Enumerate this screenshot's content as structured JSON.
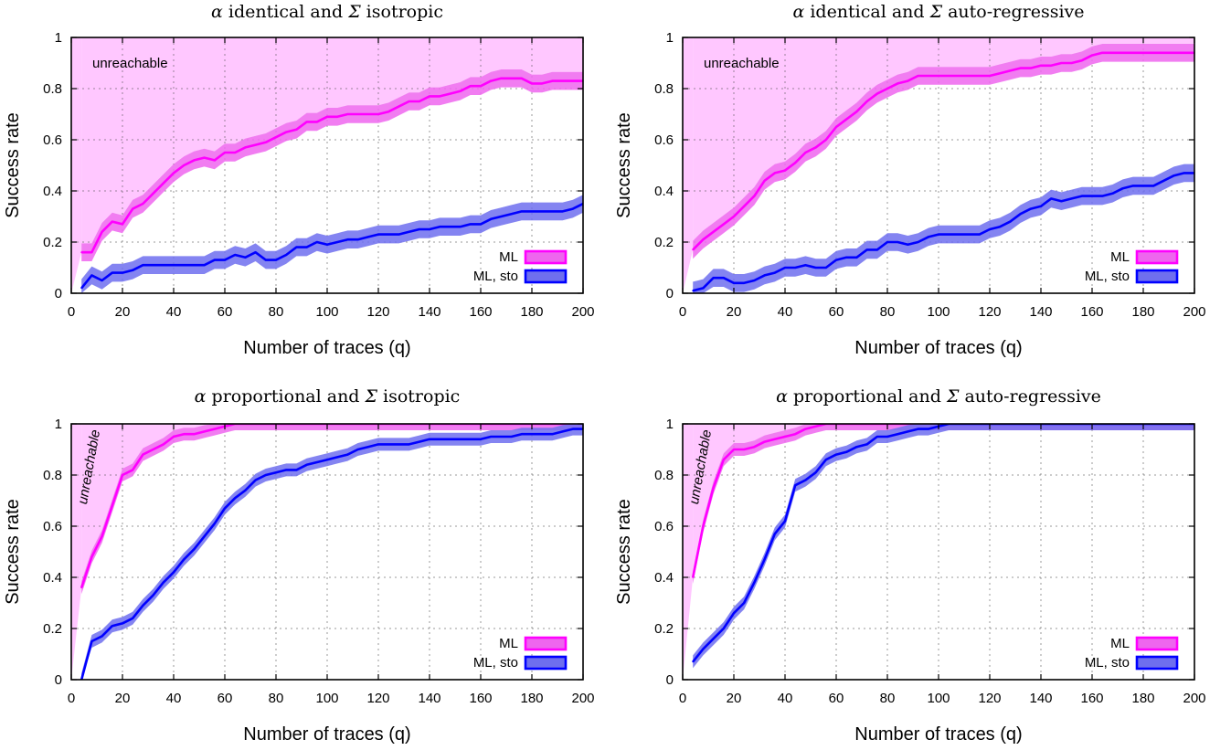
{
  "chart_data": [
    {
      "type": "line",
      "title_symbol_1": "α",
      "title_mid": "identical and",
      "title_symbol_2": "Σ",
      "title_end": "isotropic",
      "xlabel": "Number of traces (q)",
      "ylabel": "Success rate",
      "xlim": [
        0,
        200
      ],
      "ylim": [
        0,
        1
      ],
      "xticks": [
        "0",
        "20",
        "40",
        "60",
        "80",
        "100",
        "120",
        "140",
        "160",
        "180",
        "200"
      ],
      "yticks": [
        "0",
        "0.2",
        "0.4",
        "0.6",
        "0.8",
        "1"
      ],
      "grid": true,
      "legend_position": "bottom-right",
      "region_label": "unreachable",
      "region_label_rotated": false,
      "band_width": 0.035,
      "series": [
        {
          "name": "ML",
          "color": "#ff00ff",
          "band_color": "#ee66ee",
          "x": [
            4,
            8,
            12,
            16,
            20,
            24,
            28,
            32,
            36,
            40,
            44,
            48,
            52,
            56,
            60,
            64,
            68,
            72,
            76,
            80,
            84,
            88,
            92,
            96,
            100,
            104,
            108,
            112,
            116,
            120,
            124,
            128,
            132,
            136,
            140,
            144,
            148,
            152,
            156,
            160,
            164,
            168,
            172,
            176,
            180,
            184,
            188,
            192,
            196,
            200
          ],
          "y": [
            0.16,
            0.16,
            0.24,
            0.28,
            0.27,
            0.33,
            0.35,
            0.39,
            0.43,
            0.47,
            0.5,
            0.52,
            0.53,
            0.52,
            0.55,
            0.55,
            0.57,
            0.58,
            0.59,
            0.61,
            0.63,
            0.64,
            0.67,
            0.67,
            0.69,
            0.69,
            0.7,
            0.7,
            0.7,
            0.7,
            0.71,
            0.73,
            0.75,
            0.75,
            0.77,
            0.77,
            0.78,
            0.79,
            0.81,
            0.81,
            0.83,
            0.84,
            0.84,
            0.84,
            0.82,
            0.82,
            0.83,
            0.83,
            0.83,
            0.83
          ]
        },
        {
          "name": "ML, sto",
          "color": "#0000ff",
          "band_color": "#6f6fee",
          "x": [
            4,
            8,
            12,
            16,
            20,
            24,
            28,
            32,
            36,
            40,
            44,
            48,
            52,
            56,
            60,
            64,
            68,
            72,
            76,
            80,
            84,
            88,
            92,
            96,
            100,
            104,
            108,
            112,
            116,
            120,
            124,
            128,
            132,
            136,
            140,
            144,
            148,
            152,
            156,
            160,
            164,
            168,
            172,
            176,
            180,
            184,
            188,
            192,
            196,
            200
          ],
          "y": [
            0.02,
            0.07,
            0.05,
            0.08,
            0.08,
            0.09,
            0.11,
            0.11,
            0.11,
            0.11,
            0.11,
            0.11,
            0.11,
            0.13,
            0.13,
            0.15,
            0.14,
            0.16,
            0.13,
            0.13,
            0.15,
            0.18,
            0.18,
            0.2,
            0.19,
            0.2,
            0.21,
            0.21,
            0.22,
            0.23,
            0.23,
            0.23,
            0.24,
            0.25,
            0.25,
            0.26,
            0.26,
            0.26,
            0.27,
            0.27,
            0.29,
            0.3,
            0.31,
            0.32,
            0.32,
            0.32,
            0.32,
            0.32,
            0.33,
            0.35
          ]
        }
      ]
    },
    {
      "type": "line",
      "title_symbol_1": "α",
      "title_mid": "identical and",
      "title_symbol_2": "Σ",
      "title_end": "auto-regressive",
      "xlabel": "Number of traces (q)",
      "ylabel": "Success rate",
      "xlim": [
        0,
        200
      ],
      "ylim": [
        0,
        1
      ],
      "xticks": [
        "0",
        "20",
        "40",
        "60",
        "80",
        "100",
        "120",
        "140",
        "160",
        "180",
        "200"
      ],
      "yticks": [
        "0",
        "0.2",
        "0.4",
        "0.6",
        "0.8",
        "1"
      ],
      "grid": true,
      "legend_position": "bottom-right",
      "region_label": "unreachable",
      "region_label_rotated": false,
      "band_width": 0.035,
      "series": [
        {
          "name": "ML",
          "color": "#ff00ff",
          "band_color": "#ee66ee",
          "x": [
            4,
            8,
            12,
            16,
            20,
            24,
            28,
            32,
            36,
            40,
            44,
            48,
            52,
            56,
            60,
            64,
            68,
            72,
            76,
            80,
            84,
            88,
            92,
            96,
            100,
            104,
            108,
            112,
            116,
            120,
            124,
            128,
            132,
            136,
            140,
            144,
            148,
            152,
            156,
            160,
            164,
            168,
            172,
            176,
            180,
            184,
            188,
            192,
            196,
            200
          ],
          "y": [
            0.17,
            0.21,
            0.24,
            0.27,
            0.3,
            0.34,
            0.38,
            0.44,
            0.47,
            0.48,
            0.51,
            0.55,
            0.57,
            0.6,
            0.65,
            0.68,
            0.71,
            0.75,
            0.78,
            0.8,
            0.82,
            0.83,
            0.85,
            0.85,
            0.85,
            0.85,
            0.85,
            0.85,
            0.85,
            0.85,
            0.86,
            0.87,
            0.88,
            0.88,
            0.89,
            0.89,
            0.9,
            0.9,
            0.91,
            0.93,
            0.94,
            0.94,
            0.94,
            0.94,
            0.94,
            0.94,
            0.94,
            0.94,
            0.94,
            0.94
          ]
        },
        {
          "name": "ML, sto",
          "color": "#0000ff",
          "band_color": "#6f6fee",
          "x": [
            4,
            8,
            12,
            16,
            20,
            24,
            28,
            32,
            36,
            40,
            44,
            48,
            52,
            56,
            60,
            64,
            68,
            72,
            76,
            80,
            84,
            88,
            92,
            96,
            100,
            104,
            108,
            112,
            116,
            120,
            124,
            128,
            132,
            136,
            140,
            144,
            148,
            152,
            156,
            160,
            164,
            168,
            172,
            176,
            180,
            184,
            188,
            192,
            196,
            200
          ],
          "y": [
            0.01,
            0.02,
            0.06,
            0.06,
            0.04,
            0.04,
            0.05,
            0.07,
            0.08,
            0.1,
            0.1,
            0.11,
            0.1,
            0.1,
            0.13,
            0.14,
            0.14,
            0.17,
            0.17,
            0.2,
            0.2,
            0.19,
            0.2,
            0.22,
            0.23,
            0.23,
            0.23,
            0.23,
            0.23,
            0.25,
            0.26,
            0.28,
            0.31,
            0.33,
            0.34,
            0.37,
            0.36,
            0.37,
            0.38,
            0.38,
            0.38,
            0.39,
            0.41,
            0.42,
            0.42,
            0.42,
            0.44,
            0.46,
            0.47,
            0.47
          ]
        }
      ]
    },
    {
      "type": "line",
      "title_symbol_1": "α",
      "title_mid": "proportional and",
      "title_symbol_2": "Σ",
      "title_end": "isotropic",
      "xlabel": "Number of traces (q)",
      "ylabel": "Success rate",
      "xlim": [
        0,
        200
      ],
      "ylim": [
        0,
        1
      ],
      "xticks": [
        "0",
        "20",
        "40",
        "60",
        "80",
        "100",
        "120",
        "140",
        "160",
        "180",
        "200"
      ],
      "yticks": [
        "0",
        "0.2",
        "0.4",
        "0.6",
        "0.8",
        "1"
      ],
      "grid": true,
      "legend_position": "bottom-right",
      "region_label": "unreachable",
      "region_label_rotated": true,
      "band_width": 0.025,
      "series": [
        {
          "name": "ML",
          "color": "#ff00ff",
          "band_color": "#ee66ee",
          "x": [
            4,
            8,
            12,
            16,
            20,
            24,
            28,
            32,
            36,
            40,
            44,
            48,
            52,
            56,
            60,
            64,
            68,
            72,
            76,
            80,
            84,
            88,
            92,
            96,
            100,
            110,
            120,
            140,
            160,
            180,
            200
          ],
          "y": [
            0.36,
            0.48,
            0.56,
            0.68,
            0.8,
            0.82,
            0.88,
            0.9,
            0.92,
            0.95,
            0.96,
            0.96,
            0.97,
            0.98,
            0.99,
            1.0,
            1.0,
            1.0,
            1.0,
            1.0,
            1.0,
            1.0,
            1.0,
            1.0,
            1.0,
            1.0,
            1.0,
            1.0,
            1.0,
            1.0,
            1.0
          ]
        },
        {
          "name": "ML, sto",
          "color": "#0000ff",
          "band_color": "#6f6fee",
          "x": [
            4,
            8,
            12,
            16,
            20,
            24,
            28,
            32,
            36,
            40,
            44,
            48,
            52,
            56,
            60,
            64,
            68,
            72,
            76,
            80,
            84,
            88,
            92,
            96,
            100,
            104,
            108,
            112,
            116,
            120,
            124,
            128,
            132,
            136,
            140,
            144,
            148,
            152,
            156,
            160,
            164,
            168,
            172,
            176,
            180,
            184,
            188,
            192,
            196,
            200
          ],
          "y": [
            0.0,
            0.15,
            0.17,
            0.21,
            0.22,
            0.24,
            0.29,
            0.33,
            0.38,
            0.42,
            0.47,
            0.51,
            0.56,
            0.61,
            0.67,
            0.71,
            0.74,
            0.78,
            0.8,
            0.81,
            0.82,
            0.82,
            0.84,
            0.85,
            0.86,
            0.87,
            0.88,
            0.9,
            0.91,
            0.92,
            0.92,
            0.92,
            0.92,
            0.93,
            0.94,
            0.94,
            0.94,
            0.94,
            0.94,
            0.94,
            0.95,
            0.95,
            0.95,
            0.96,
            0.96,
            0.96,
            0.96,
            0.97,
            0.98,
            0.98
          ]
        }
      ]
    },
    {
      "type": "line",
      "title_symbol_1": "α",
      "title_mid": "proportional and",
      "title_symbol_2": "Σ",
      "title_end": "auto-regressive",
      "xlabel": "Number of traces (q)",
      "ylabel": "Success rate",
      "xlim": [
        0,
        200
      ],
      "ylim": [
        0,
        1
      ],
      "xticks": [
        "0",
        "20",
        "40",
        "60",
        "80",
        "100",
        "120",
        "140",
        "160",
        "180",
        "200"
      ],
      "yticks": [
        "0",
        "0.2",
        "0.4",
        "0.6",
        "0.8",
        "1"
      ],
      "grid": true,
      "legend_position": "bottom-right",
      "region_label": "unreachable",
      "region_label_rotated": true,
      "band_width": 0.025,
      "series": [
        {
          "name": "ML",
          "color": "#ff00ff",
          "band_color": "#ee66ee",
          "x": [
            4,
            8,
            12,
            16,
            20,
            24,
            28,
            32,
            36,
            40,
            44,
            48,
            52,
            56,
            60,
            64,
            68,
            72,
            76,
            80,
            84,
            88,
            92,
            96,
            100,
            110,
            120,
            140,
            160,
            180,
            200
          ],
          "y": [
            0.4,
            0.6,
            0.75,
            0.86,
            0.9,
            0.9,
            0.91,
            0.93,
            0.94,
            0.95,
            0.96,
            0.98,
            0.99,
            1.0,
            1.0,
            1.0,
            1.0,
            1.0,
            1.0,
            1.0,
            1.0,
            1.0,
            1.0,
            1.0,
            1.0,
            1.0,
            1.0,
            1.0,
            1.0,
            1.0,
            1.0
          ]
        },
        {
          "name": "ML, sto",
          "color": "#0000ff",
          "band_color": "#6f6fee",
          "x": [
            4,
            8,
            12,
            16,
            20,
            24,
            28,
            32,
            36,
            40,
            44,
            48,
            52,
            56,
            60,
            64,
            68,
            72,
            76,
            80,
            84,
            88,
            92,
            96,
            100,
            104,
            108,
            112,
            116,
            120,
            130,
            140,
            160,
            180,
            200
          ],
          "y": [
            0.07,
            0.12,
            0.16,
            0.2,
            0.26,
            0.3,
            0.38,
            0.47,
            0.57,
            0.62,
            0.76,
            0.78,
            0.81,
            0.86,
            0.88,
            0.89,
            0.91,
            0.92,
            0.95,
            0.95,
            0.96,
            0.97,
            0.98,
            0.98,
            0.99,
            1.0,
            1.0,
            1.0,
            1.0,
            1.0,
            1.0,
            1.0,
            1.0,
            1.0,
            1.0
          ]
        }
      ]
    }
  ]
}
